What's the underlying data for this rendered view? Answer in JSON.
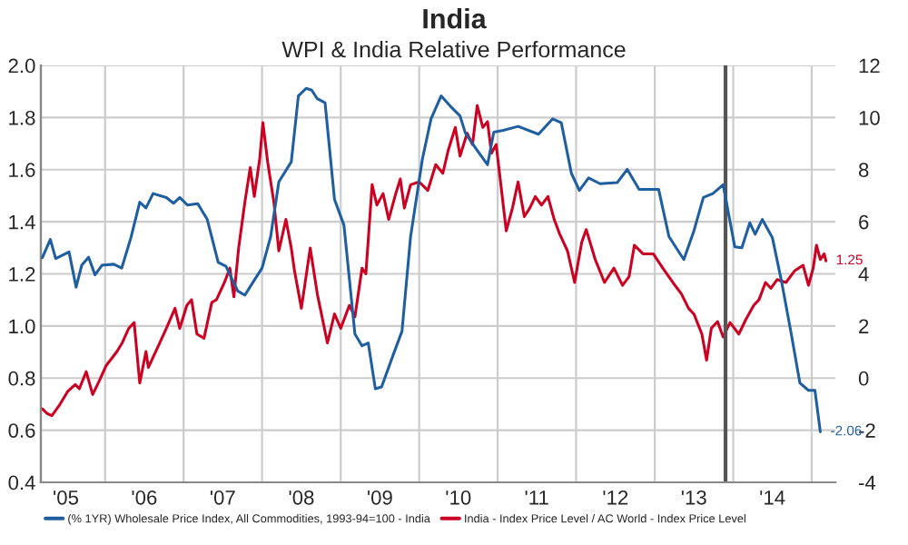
{
  "chart_data": {
    "type": "line",
    "title": "India",
    "subtitle": "WPI & India Relative Performance",
    "xlim": [
      "2005-03-08",
      "2015-04-21"
    ],
    "xticks": [
      {
        "value": "2005-07-02",
        "label": "'05"
      },
      {
        "value": "2006-01-01",
        "label": null
      },
      {
        "value": "2006-07-02",
        "label": "'06"
      },
      {
        "value": "2007-01-01",
        "label": null
      },
      {
        "value": "2007-07-02",
        "label": "'07"
      },
      {
        "value": "2008-01-01",
        "label": null
      },
      {
        "value": "2008-07-02",
        "label": "'08"
      },
      {
        "value": "2009-01-01",
        "label": null
      },
      {
        "value": "2009-07-02",
        "label": "'09"
      },
      {
        "value": "2010-01-01",
        "label": null
      },
      {
        "value": "2010-07-02",
        "label": "'10"
      },
      {
        "value": "2011-01-01",
        "label": null
      },
      {
        "value": "2011-07-02",
        "label": "'11"
      },
      {
        "value": "2012-01-01",
        "label": null
      },
      {
        "value": "2012-07-02",
        "label": "'12"
      },
      {
        "value": "2013-01-01",
        "label": null
      },
      {
        "value": "2013-07-02",
        "label": "'13"
      },
      {
        "value": "2014-01-01",
        "label": null
      },
      {
        "value": "2014-07-02",
        "label": "'14"
      },
      {
        "value": "2015-01-01",
        "label": null
      }
    ],
    "ylim": [
      0.4,
      2.0
    ],
    "yticks": [
      {
        "value": 0.4,
        "label": "0.4"
      },
      {
        "value": 0.6,
        "label": "0.6"
      },
      {
        "value": 0.8,
        "label": "0.8"
      },
      {
        "value": 1.0,
        "label": "1.0"
      },
      {
        "value": 1.2,
        "label": "1.2"
      },
      {
        "value": 1.4,
        "label": "1.4"
      },
      {
        "value": 1.6,
        "label": "1.6"
      },
      {
        "value": 1.8,
        "label": "1.8"
      },
      {
        "value": 2.0,
        "label": "2.0"
      }
    ],
    "y2lim": [
      -4,
      12
    ],
    "y2ticks": [
      -4,
      -2,
      0,
      2,
      4,
      6,
      8,
      10,
      12
    ],
    "grid": true,
    "legend": "bottom",
    "line_style": "solid",
    "marker": "none",
    "ref_lines": [
      {
        "axis": "x",
        "value": "2013-11-26",
        "color": "#555555"
      }
    ],
    "series": [
      {
        "name": "(% 1YR) Wholesale Price Index, All Commodities, 1993-94=100 - India",
        "color": "#1f5fa0",
        "axis": "y2",
        "x": [
          "2005-03-15",
          "2005-04-21",
          "2005-05-16",
          "2005-07-17",
          "2005-08-19",
          "2005-09-14",
          "2005-10-16",
          "2005-11-15",
          "2005-12-17",
          "2006-02-10",
          "2006-03-19",
          "2006-05-01",
          "2006-06-11",
          "2006-07-10",
          "2006-08-12",
          "2006-10-13",
          "2006-11-15",
          "2006-12-14",
          "2007-01-19",
          "2007-03-08",
          "2007-04-21",
          "2007-06-11",
          "2007-07-17",
          "2007-09-10",
          "2007-10-13",
          "2007-11-22",
          "2008-01-01",
          "2008-02-10",
          "2008-03-19",
          "2008-05-16",
          "2008-06-18",
          "2008-07-24",
          "2008-08-19",
          "2008-09-14",
          "2008-10-20",
          "2008-12-03",
          "2009-01-16",
          "2009-03-08",
          "2009-04-10",
          "2009-05-09",
          "2009-06-11",
          "2009-07-10",
          "2009-09-03",
          "2009-10-13",
          "2009-11-22",
          "2010-01-16",
          "2010-02-25",
          "2010-04-13",
          "2010-05-31",
          "2010-07-10",
          "2010-08-04",
          "2010-09-28",
          "2010-11-15",
          "2010-12-14",
          "2011-01-27",
          "2011-04-06",
          "2011-07-10",
          "2011-09-14",
          "2011-10-24",
          "2011-12-10",
          "2012-01-16",
          "2012-02-28",
          "2012-04-21",
          "2012-07-10",
          "2012-08-26",
          "2012-10-20",
          "2013-01-19",
          "2013-03-08",
          "2013-05-16",
          "2013-07-02",
          "2013-08-15",
          "2013-09-28",
          "2013-11-15",
          "2014-01-08",
          "2014-02-10",
          "2014-03-19",
          "2014-04-13",
          "2014-05-16",
          "2014-07-02",
          "2014-08-12",
          "2014-09-28",
          "2014-11-07",
          "2014-12-17",
          "2015-01-16",
          "2015-02-10"
        ],
        "values": [
          4.62,
          5.32,
          4.59,
          4.84,
          3.49,
          4.33,
          4.64,
          3.96,
          4.33,
          4.37,
          4.22,
          5.39,
          6.75,
          6.53,
          7.08,
          6.93,
          6.71,
          6.93,
          6.64,
          6.69,
          6.09,
          4.44,
          4.29,
          3.34,
          3.18,
          3.71,
          4.22,
          5.43,
          7.53,
          8.3,
          10.83,
          11.12,
          11.05,
          10.72,
          10.57,
          6.86,
          5.87,
          1.69,
          1.24,
          1.35,
          -0.41,
          -0.34,
          0.91,
          1.8,
          5.43,
          8.41,
          9.95,
          10.83,
          10.39,
          10.06,
          9.4,
          8.74,
          8.19,
          9.44,
          9.51,
          9.66,
          9.36,
          9.95,
          9.8,
          7.86,
          7.2,
          7.68,
          7.46,
          7.5,
          8.01,
          7.24,
          7.24,
          5.43,
          4.55,
          5.65,
          6.93,
          7.08,
          7.42,
          5.04,
          5.0,
          5.96,
          5.52,
          6.09,
          5.39,
          3.78,
          1.69,
          -0.19,
          -0.47,
          -0.47,
          -2.06
        ],
        "value_labels": [
          null,
          null,
          null,
          null,
          null,
          null,
          null,
          null,
          null,
          null,
          null,
          null,
          null,
          null,
          null,
          null,
          null,
          null,
          null,
          null,
          null,
          null,
          null,
          null,
          null,
          null,
          null,
          null,
          null,
          null,
          null,
          null,
          null,
          null,
          null,
          null,
          null,
          null,
          null,
          null,
          null,
          null,
          null,
          null,
          null,
          null,
          null,
          null,
          null,
          null,
          null,
          null,
          null,
          null,
          null,
          null,
          null,
          null,
          null,
          null,
          null,
          null,
          null,
          null,
          null,
          null,
          null,
          null,
          null,
          null,
          null,
          null,
          null,
          null,
          null,
          null,
          null,
          null,
          null,
          null,
          null,
          null,
          null,
          null,
          "-2.06"
        ]
      },
      {
        "name": "India - Index Price Level / AC World - Index Price Level",
        "color": "#cc0022",
        "axis": "y",
        "x": [
          "2005-03-15",
          "2005-04-06",
          "2005-04-28",
          "2005-05-31",
          "2005-07-10",
          "2005-08-15",
          "2005-09-03",
          "2005-10-05",
          "2005-11-04",
          "2005-12-06",
          "2006-01-05",
          "2006-02-25",
          "2006-03-22",
          "2006-04-21",
          "2006-05-16",
          "2006-06-11",
          "2006-07-10",
          "2006-07-21",
          "2006-09-06",
          "2006-10-13",
          "2006-11-22",
          "2006-12-14",
          "2007-01-16",
          "2007-02-07",
          "2007-03-04",
          "2007-04-06",
          "2007-05-12",
          "2007-06-03",
          "2007-07-10",
          "2007-08-04",
          "2007-08-23",
          "2007-09-14",
          "2007-10-13",
          "2007-11-07",
          "2007-11-26",
          "2007-12-21",
          "2008-01-05",
          "2008-01-27",
          "2008-02-25",
          "2008-03-19",
          "2008-04-21",
          "2008-05-16",
          "2008-05-31",
          "2008-07-02",
          "2008-08-12",
          "2008-09-14",
          "2008-10-31",
          "2008-12-03",
          "2009-01-01",
          "2009-02-10",
          "2009-03-08",
          "2009-04-10",
          "2009-04-28",
          "2009-05-27",
          "2009-06-18",
          "2009-07-17",
          "2009-08-12",
          "2009-09-14",
          "2009-10-05",
          "2009-10-24",
          "2009-11-22",
          "2010-01-01",
          "2010-02-10",
          "2010-03-19",
          "2010-04-21",
          "2010-05-16",
          "2010-06-18",
          "2010-07-10",
          "2010-08-12",
          "2010-09-06",
          "2010-09-28",
          "2010-10-24",
          "2010-11-15",
          "2010-12-03",
          "2010-12-25",
          "2011-01-16",
          "2011-02-10",
          "2011-03-11",
          "2011-04-06",
          "2011-05-05",
          "2011-05-31",
          "2011-06-25",
          "2011-07-24",
          "2011-08-23",
          "2011-09-21",
          "2011-10-16",
          "2011-11-22",
          "2011-12-25",
          "2012-01-27",
          "2012-02-17",
          "2012-03-30",
          "2012-05-12",
          "2012-06-25",
          "2012-08-04",
          "2012-09-03",
          "2012-09-28",
          "2012-11-07",
          "2012-12-25",
          "2013-02-07",
          "2013-03-26",
          "2013-05-05",
          "2013-06-07",
          "2013-07-02",
          "2013-08-08",
          "2013-08-30",
          "2013-09-21",
          "2013-10-20",
          "2013-11-15",
          "2013-12-17",
          "2014-01-27",
          "2014-02-28",
          "2014-04-06",
          "2014-05-01",
          "2014-05-31",
          "2014-06-25",
          "2014-07-24",
          "2014-09-03",
          "2014-10-13",
          "2014-11-22",
          "2014-12-17",
          "2015-01-08",
          "2015-01-23",
          "2015-02-10",
          "2015-02-28",
          "2015-03-08"
        ],
        "values": [
          0.682,
          0.664,
          0.656,
          0.693,
          0.748,
          0.775,
          0.759,
          0.825,
          0.737,
          0.792,
          0.847,
          0.902,
          0.936,
          0.991,
          1.013,
          0.781,
          0.902,
          0.841,
          0.924,
          0.991,
          1.068,
          0.991,
          1.079,
          1.101,
          0.969,
          0.953,
          1.09,
          1.101,
          1.167,
          1.222,
          1.112,
          1.299,
          1.475,
          1.608,
          1.497,
          1.641,
          1.78,
          1.63,
          1.475,
          1.288,
          1.409,
          1.299,
          1.211,
          1.068,
          1.299,
          1.123,
          0.935,
          1.046,
          0.991,
          1.079,
          1.035,
          1.222,
          1.2,
          1.542,
          1.464,
          1.508,
          1.409,
          1.508,
          1.564,
          1.453,
          1.542,
          1.553,
          1.52,
          1.619,
          1.586,
          1.674,
          1.762,
          1.652,
          1.74,
          1.696,
          1.846,
          1.762,
          1.784,
          1.663,
          1.696,
          1.542,
          1.365,
          1.453,
          1.553,
          1.42,
          1.453,
          1.497,
          1.464,
          1.497,
          1.409,
          1.354,
          1.288,
          1.167,
          1.321,
          1.37,
          1.255,
          1.167,
          1.222,
          1.156,
          1.189,
          1.31,
          1.277,
          1.277,
          1.222,
          1.167,
          1.123,
          1.068,
          1.046,
          0.969,
          0.869,
          0.991,
          1.017,
          0.958,
          1.013,
          0.969,
          1.024,
          1.079,
          1.101,
          1.167,
          1.145,
          1.178,
          1.167,
          1.211,
          1.233,
          1.156,
          1.222,
          1.31,
          1.255,
          1.277,
          1.25
        ],
        "value_labels": [
          null,
          null,
          null,
          null,
          null,
          null,
          null,
          null,
          null,
          null,
          null,
          null,
          null,
          null,
          null,
          null,
          null,
          null,
          null,
          null,
          null,
          null,
          null,
          null,
          null,
          null,
          null,
          null,
          null,
          null,
          null,
          null,
          null,
          null,
          null,
          null,
          null,
          null,
          null,
          null,
          null,
          null,
          null,
          null,
          null,
          null,
          null,
          null,
          null,
          null,
          null,
          null,
          null,
          null,
          null,
          null,
          null,
          null,
          null,
          null,
          null,
          null,
          null,
          null,
          null,
          null,
          null,
          null,
          null,
          null,
          null,
          null,
          null,
          null,
          null,
          null,
          null,
          null,
          null,
          null,
          null,
          null,
          null,
          null,
          null,
          null,
          null,
          null,
          null,
          null,
          null,
          null,
          null,
          null,
          null,
          null,
          null,
          null,
          null,
          null,
          null,
          null,
          null,
          null,
          null,
          null,
          null,
          null,
          null,
          null,
          null,
          null,
          null,
          null,
          null,
          null,
          null,
          null,
          null,
          null,
          null,
          null,
          null,
          null,
          "1.25"
        ]
      }
    ]
  }
}
